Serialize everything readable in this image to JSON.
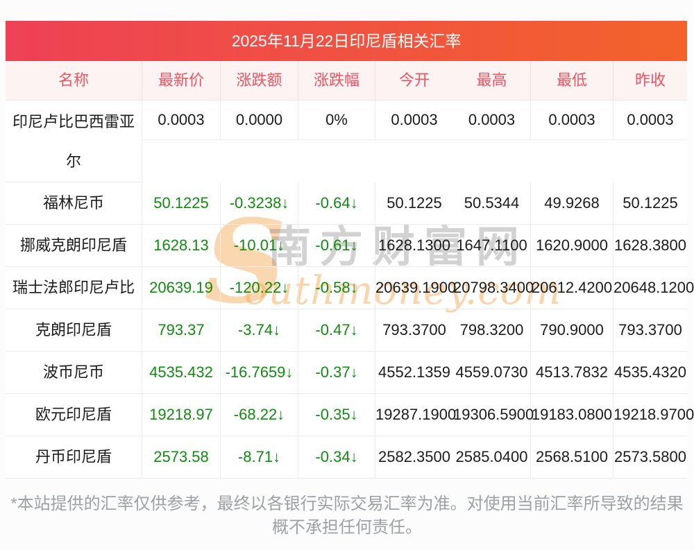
{
  "page": {
    "title": "2025年11月22日印尼盾相关汇率",
    "footer_line1": "*本站提供的汇率仅供参考，最终以各银行实际交易汇率为准。对使用当前汇率所导致的结果",
    "footer_line2": "概不承担任何责任。"
  },
  "columns": [
    "名称",
    "最新价",
    "涨跌额",
    "涨跌幅",
    "今开",
    "最高",
    "最低",
    "昨收"
  ],
  "rows": [
    {
      "name": "印尼卢比巴西雷亚尔",
      "latest": "0.0003",
      "change": "0.0000",
      "change_pct": "0%",
      "open": "0.0003",
      "high": "0.0003",
      "low": "0.0003",
      "prev_close": "0.0003",
      "trend": "flat"
    },
    {
      "name": "福林尼币",
      "latest": "50.1225",
      "change": "-0.3238↓",
      "change_pct": "-0.64↓",
      "open": "50.1225",
      "high": "50.5344",
      "low": "49.9268",
      "prev_close": "50.1225",
      "trend": "down"
    },
    {
      "name": "挪威克朗印尼盾",
      "latest": "1628.13",
      "change": "-10.01↓",
      "change_pct": "-0.61↓",
      "open": "1628.1300",
      "high": "1647.1100",
      "low": "1620.9000",
      "prev_close": "1628.3800",
      "trend": "down"
    },
    {
      "name": "瑞士法郎印尼卢比",
      "latest": "20639.19",
      "change": "-120.22↓",
      "change_pct": "-0.58↓",
      "open": "20639.1900",
      "high": "20798.3400",
      "low": "20612.4200",
      "prev_close": "20648.1200",
      "trend": "down"
    },
    {
      "name": "克朗印尼盾",
      "latest": "793.37",
      "change": "-3.74↓",
      "change_pct": "-0.47↓",
      "open": "793.3700",
      "high": "798.3200",
      "low": "790.9000",
      "prev_close": "793.3700",
      "trend": "down"
    },
    {
      "name": "波币尼币",
      "latest": "4535.432",
      "change": "-16.7659↓",
      "change_pct": "-0.37↓",
      "open": "4552.1359",
      "high": "4559.0730",
      "low": "4513.7832",
      "prev_close": "4535.4320",
      "trend": "down"
    },
    {
      "name": "欧元印尼盾",
      "latest": "19218.97",
      "change": "-68.22↓",
      "change_pct": "-0.35↓",
      "open": "19287.1900",
      "high": "19306.5900",
      "low": "19183.0800",
      "prev_close": "19218.9700",
      "trend": "down"
    },
    {
      "name": "丹币印尼盾",
      "latest": "2573.58",
      "change": "-8.71↓",
      "change_pct": "-0.34↓",
      "open": "2582.3500",
      "high": "2585.0400",
      "low": "2568.5100",
      "prev_close": "2573.5800",
      "trend": "down"
    }
  ],
  "watermark": {
    "initial": "S",
    "cn_text": "南方财富网",
    "en_text": "outhmoney.com"
  },
  "colors": {
    "banner_gradient_start": "#ee4156",
    "banner_gradient_end": "#f3632b",
    "banner_text": "#ffffff",
    "header_bg": "#fdf3f2",
    "header_text": "#f25361",
    "value_text": "#1b1b1b",
    "value_down_green": "#0f8c0f",
    "row_border": "#e9ecf1",
    "footer_text": "#9da0a5",
    "watermark_orange": "#f5b76e",
    "watermark_gray": "#7d7d7d"
  }
}
